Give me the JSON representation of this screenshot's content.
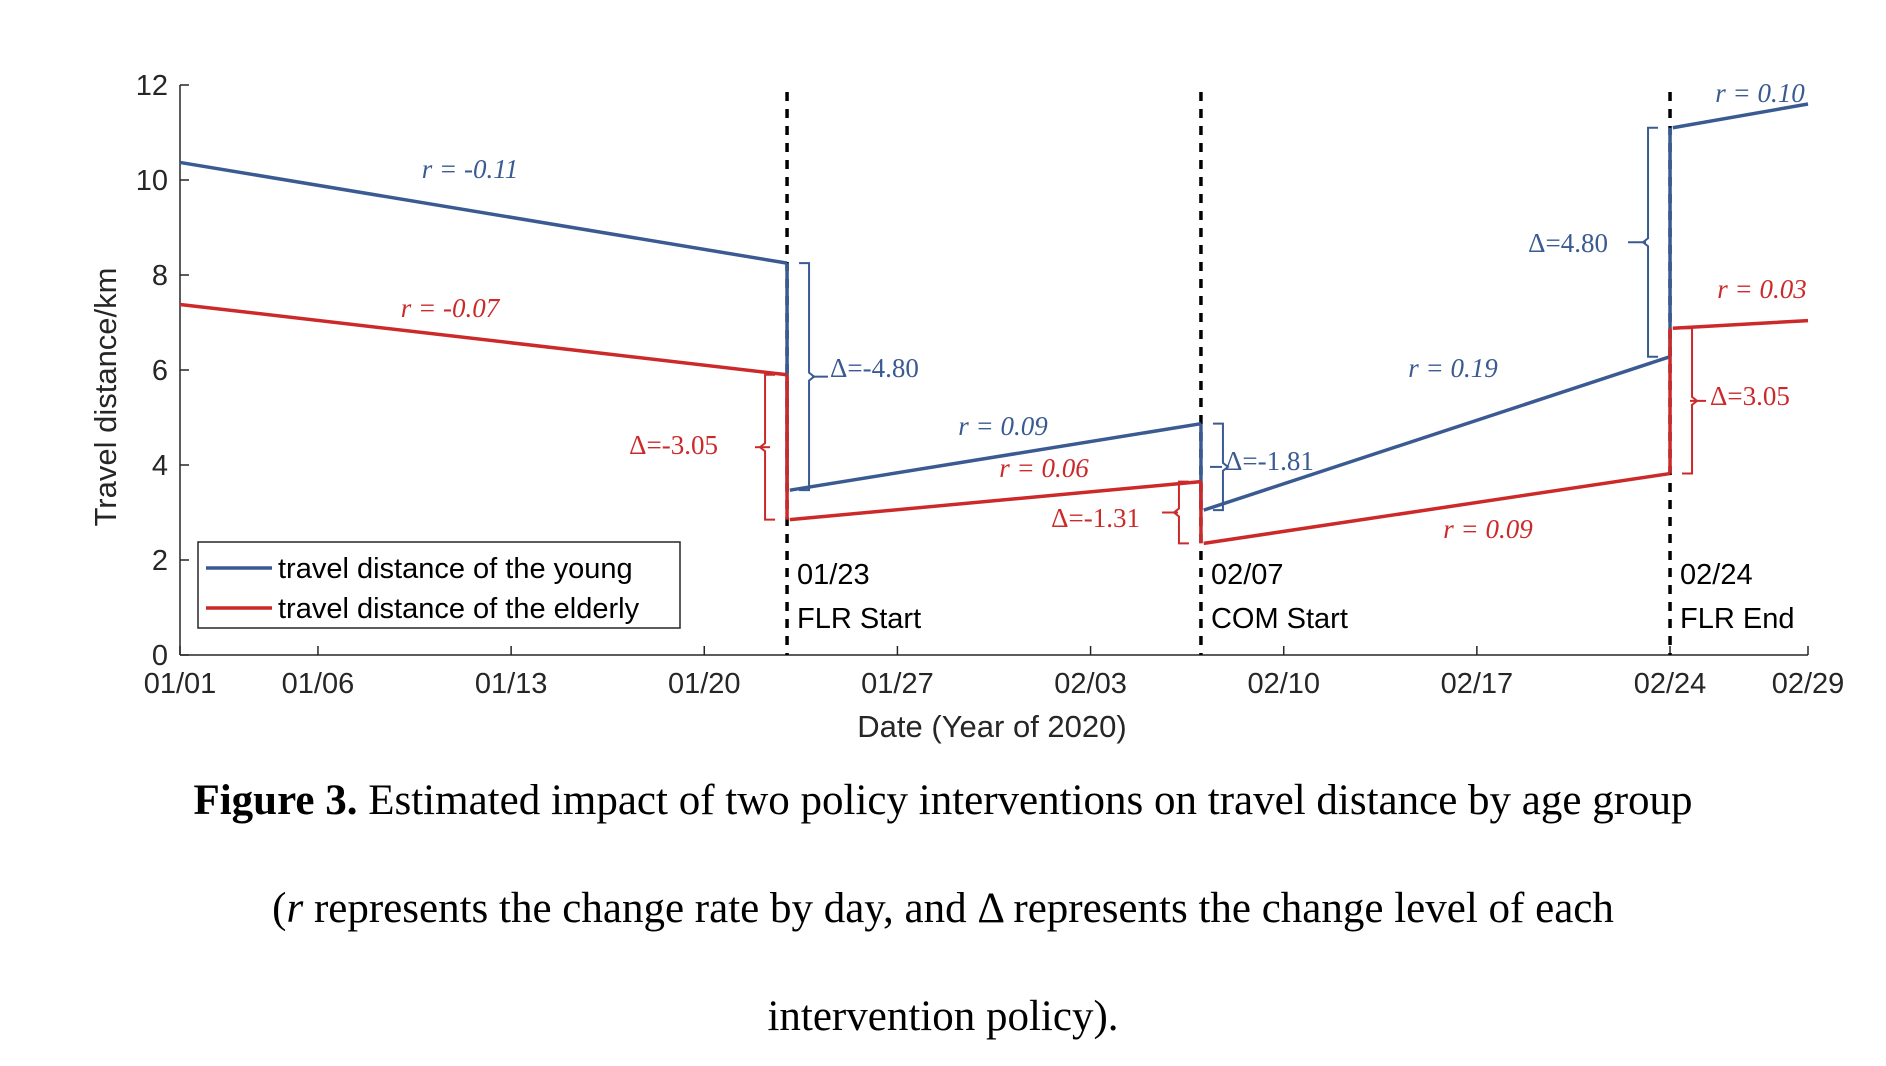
{
  "colors": {
    "young": "#3a5a92",
    "elderly": "#cc2a2a",
    "axis": "#262626"
  },
  "chart_data": {
    "type": "line",
    "title": "",
    "xlabel": "Date (Year of 2020)",
    "ylabel": "Travel distance/km",
    "ylim": [
      0,
      12
    ],
    "xlim": [
      0,
      59
    ],
    "yticks": [
      0,
      2,
      4,
      6,
      8,
      10,
      12
    ],
    "xticks": [
      {
        "day": 0,
        "label": "01/01"
      },
      {
        "day": 5,
        "label": "01/06"
      },
      {
        "day": 12,
        "label": "01/13"
      },
      {
        "day": 19,
        "label": "01/20"
      },
      {
        "day": 26,
        "label": "01/27"
      },
      {
        "day": 33,
        "label": "02/03"
      },
      {
        "day": 40,
        "label": "02/10"
      },
      {
        "day": 47,
        "label": "02/17"
      },
      {
        "day": 54,
        "label": "02/24"
      },
      {
        "day": 59,
        "label": "02/29"
      }
    ],
    "legend": {
      "placement": "lower-left",
      "entries": [
        "travel distance of the young",
        "travel distance of the elderly"
      ]
    },
    "grid": false,
    "events": [
      {
        "day": 22,
        "date": "01/23",
        "name": "FLR Start"
      },
      {
        "day": 37,
        "date": "02/07",
        "name": "COM Start"
      },
      {
        "day": 54,
        "date": "02/24",
        "name": "FLR End"
      }
    ],
    "series": [
      {
        "name": "travel distance of the young",
        "segments": [
          {
            "x": [
              0,
              22
            ],
            "y": [
              10.37,
              8.25
            ]
          },
          {
            "x": [
              22.1,
              37
            ],
            "y": [
              3.47,
              4.87
            ]
          },
          {
            "x": [
              37.1,
              54
            ],
            "y": [
              3.05,
              6.28
            ]
          },
          {
            "x": [
              54.1,
              59
            ],
            "y": [
              11.1,
              11.6
            ]
          }
        ],
        "rates": [
          "r = -0.11",
          "r = 0.09",
          "r = 0.19",
          "r = 0.10"
        ],
        "deltas": [
          "Δ=-4.80",
          "Δ=-1.81",
          "Δ=4.80"
        ]
      },
      {
        "name": "travel distance of the elderly",
        "segments": [
          {
            "x": [
              0,
              22
            ],
            "y": [
              7.38,
              5.9
            ]
          },
          {
            "x": [
              22.1,
              37
            ],
            "y": [
              2.85,
              3.65
            ]
          },
          {
            "x": [
              37.1,
              54
            ],
            "y": [
              2.35,
              3.82
            ]
          },
          {
            "x": [
              54.1,
              59
            ],
            "y": [
              6.88,
              7.04
            ]
          }
        ],
        "rates": [
          "r = -0.07",
          "r = 0.06",
          "r = 0.09",
          "r = 0.03"
        ],
        "deltas": [
          "Δ=-3.05",
          "Δ=-1.31",
          "Δ=3.05"
        ]
      }
    ]
  },
  "caption": {
    "label": "Figure 3.",
    "line1": "Estimated impact of two policy interventions on travel distance by age group",
    "line2_r": "r",
    "line2_rest": " represents the change rate by day, and Δ represents the change level of each",
    "line3": "intervention policy)."
  }
}
